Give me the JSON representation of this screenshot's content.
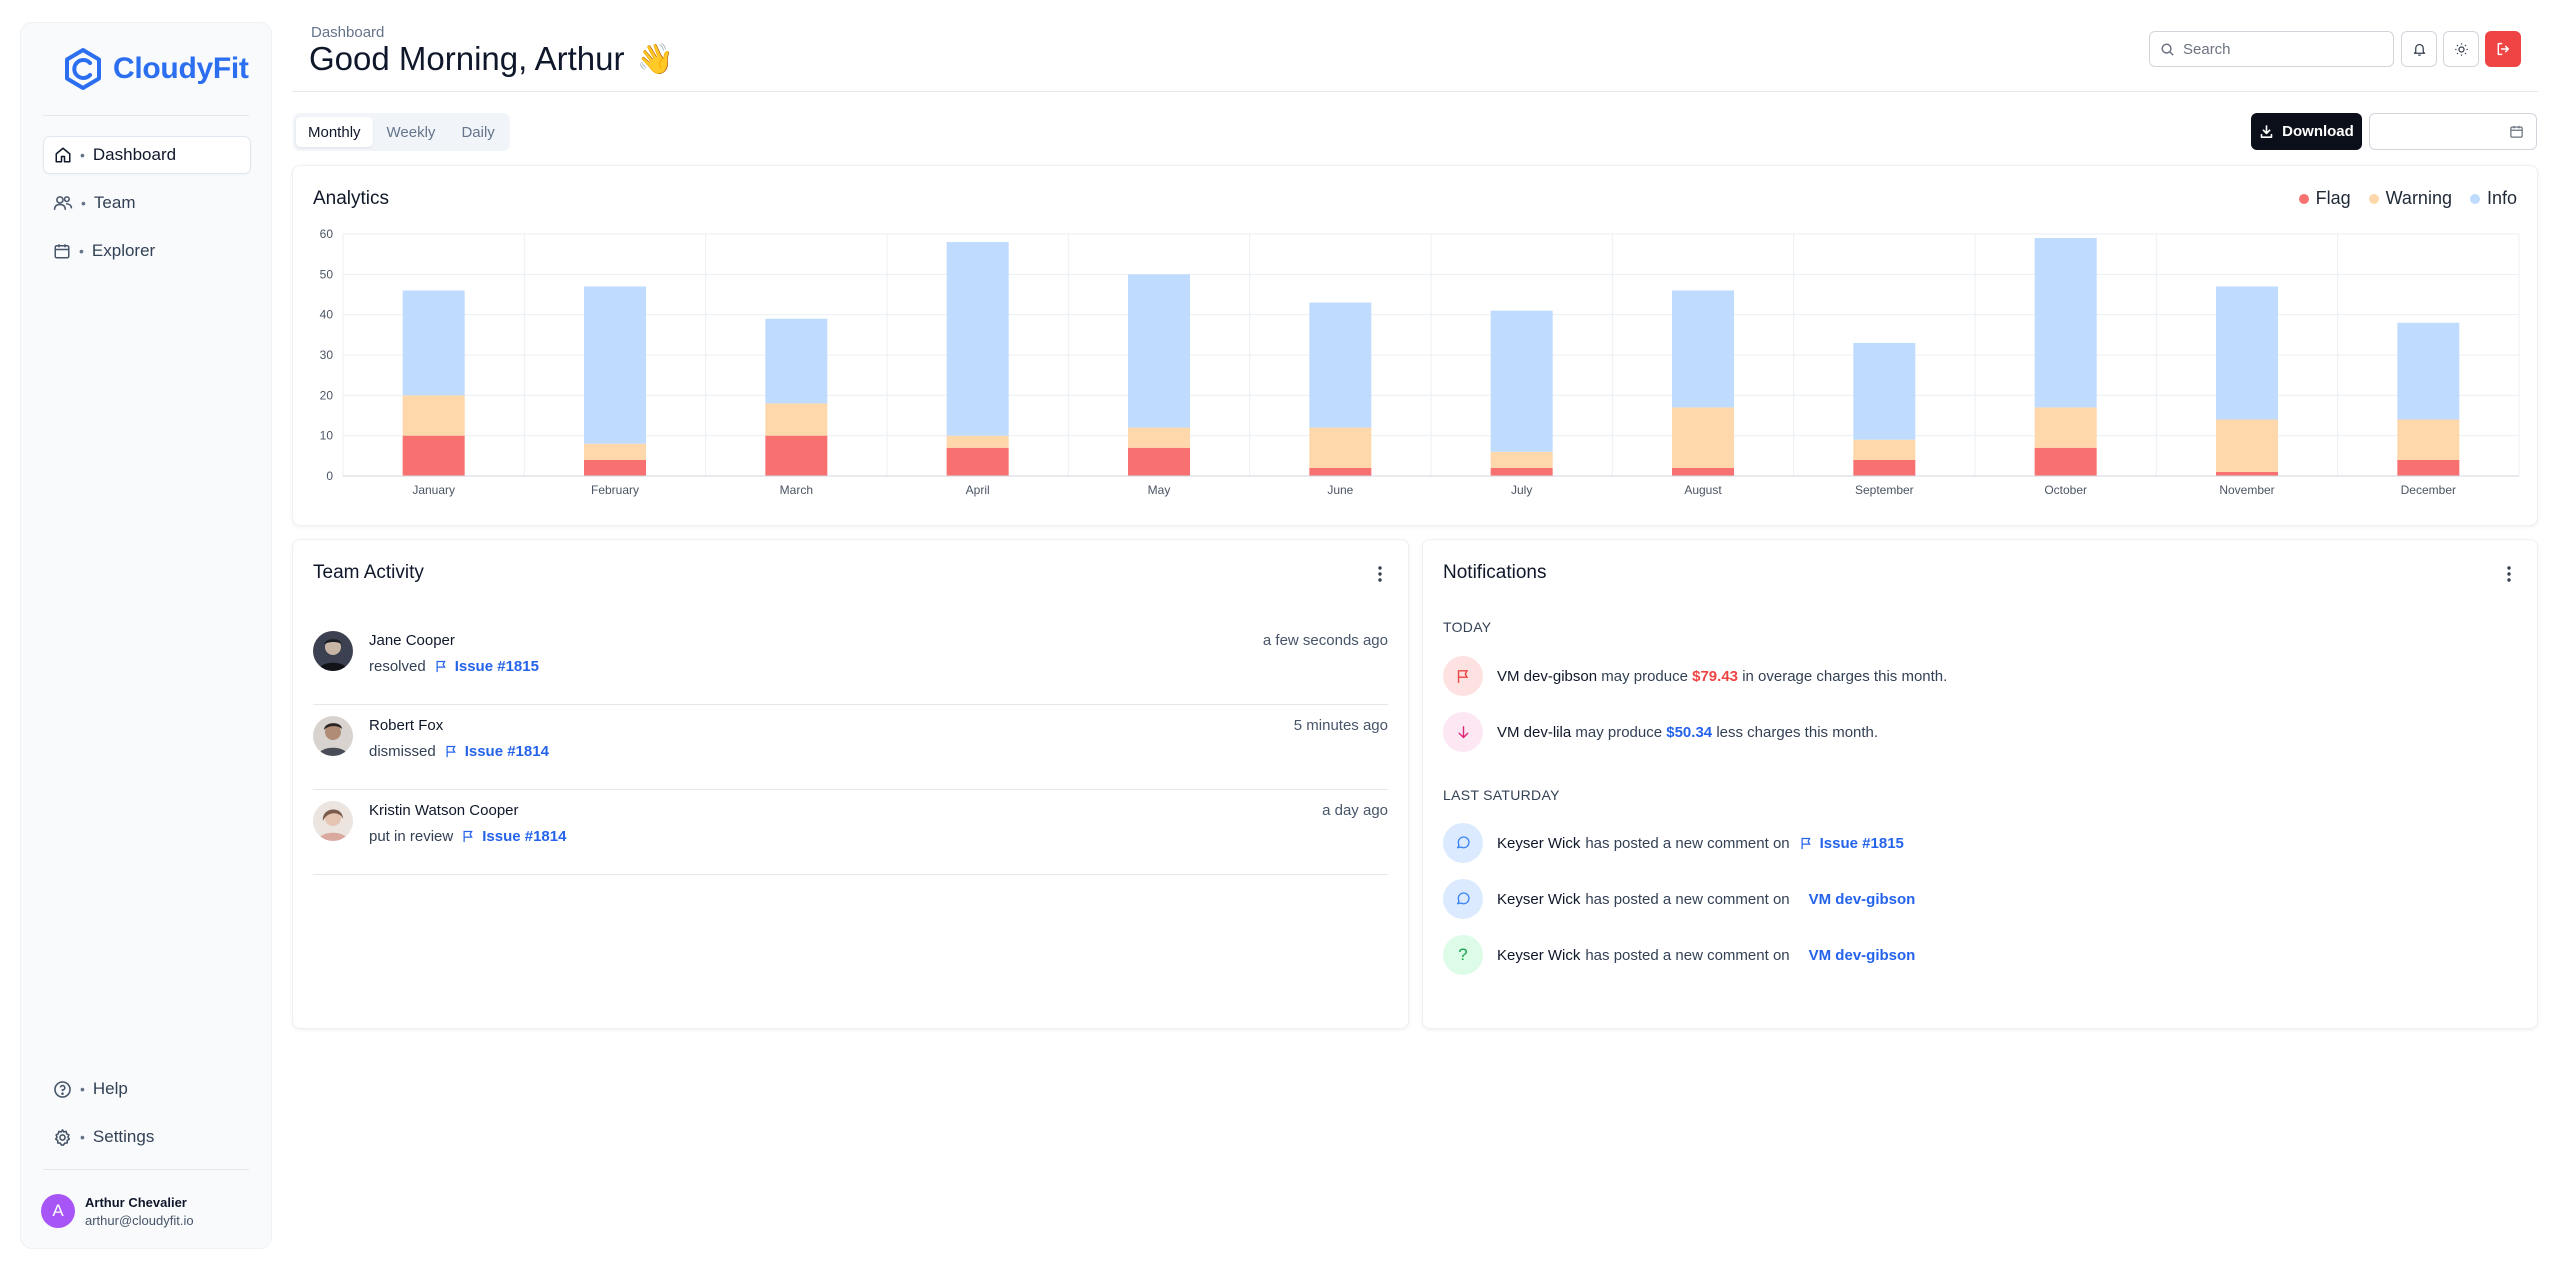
{
  "brand": {
    "name": "CloudyFit",
    "color": "#2b6ef0"
  },
  "sidebar": {
    "items": [
      {
        "label": "Dashboard",
        "icon": "home-icon",
        "active": true
      },
      {
        "label": "Team",
        "icon": "users-icon",
        "active": false
      },
      {
        "label": "Explorer",
        "icon": "calendar-icon",
        "active": false
      }
    ],
    "bottom_items": [
      {
        "label": "Help",
        "icon": "help-circle-icon"
      },
      {
        "label": "Settings",
        "icon": "gear-icon"
      }
    ],
    "user": {
      "initial": "A",
      "name": "Arthur Chevalier",
      "email": "arthur@cloudyfit.io"
    }
  },
  "header": {
    "breadcrumb": "Dashboard",
    "greeting": "Good Morning, Arthur",
    "emoji": "👋",
    "search_placeholder": "Search"
  },
  "toolbar": {
    "tabs": [
      {
        "label": "Monthly",
        "active": true
      },
      {
        "label": "Weekly",
        "active": false
      },
      {
        "label": "Daily",
        "active": false
      }
    ],
    "download_label": "Download"
  },
  "analytics": {
    "title": "Analytics"
  },
  "chart_data": {
    "type": "bar",
    "stacked": true,
    "title": "Analytics",
    "xlabel": "",
    "ylabel": "",
    "ylim": [
      0,
      60
    ],
    "yticks": [
      0,
      10,
      20,
      30,
      40,
      50,
      60
    ],
    "grid": true,
    "legend_position": "top-right",
    "categories": [
      "January",
      "February",
      "March",
      "April",
      "May",
      "June",
      "July",
      "August",
      "September",
      "October",
      "November",
      "December"
    ],
    "series": [
      {
        "name": "Flag",
        "color": "#f87171",
        "values": [
          10,
          4,
          10,
          7,
          7,
          2,
          2,
          2,
          4,
          7,
          1,
          4
        ]
      },
      {
        "name": "Warning",
        "color": "#fed7aa",
        "values": [
          10,
          4,
          8,
          3,
          5,
          10,
          4,
          15,
          5,
          10,
          13,
          10
        ]
      },
      {
        "name": "Info",
        "color": "#bfdbfe",
        "values": [
          26,
          39,
          21,
          48,
          38,
          31,
          35,
          29,
          24,
          42,
          33,
          24
        ]
      }
    ]
  },
  "team_activity": {
    "title": "Team Activity",
    "items": [
      {
        "name": "Jane Cooper",
        "action": "resolved",
        "issue": "Issue #1815",
        "time": "a few seconds ago"
      },
      {
        "name": "Robert Fox",
        "action": "dismissed",
        "issue": "Issue #1814",
        "time": "5 minutes ago"
      },
      {
        "name": "Kristin Watson Cooper",
        "action": "put in review",
        "issue": "Issue #1814",
        "time": "a day ago"
      }
    ]
  },
  "notifications": {
    "title": "Notifications",
    "today_label": "TODAY",
    "today": [
      {
        "vm": "VM dev-gibson",
        "pre": "may produce",
        "amount": "$79.43",
        "post": "in overage charges this month."
      },
      {
        "vm": "VM dev-lila",
        "pre": "may produce",
        "amount": "$50.34",
        "post": "less charges this month."
      }
    ],
    "last_label": "LAST SATURDAY",
    "last": [
      {
        "user": "Keyser Wick",
        "text": "has posted a new comment on",
        "target": "Issue #1815"
      },
      {
        "user": "Keyser Wick",
        "text": "has posted a new comment on",
        "target": "VM dev-gibson"
      },
      {
        "user": "Keyser Wick",
        "text": "has posted a new comment on",
        "target": "VM dev-gibson"
      }
    ]
  }
}
